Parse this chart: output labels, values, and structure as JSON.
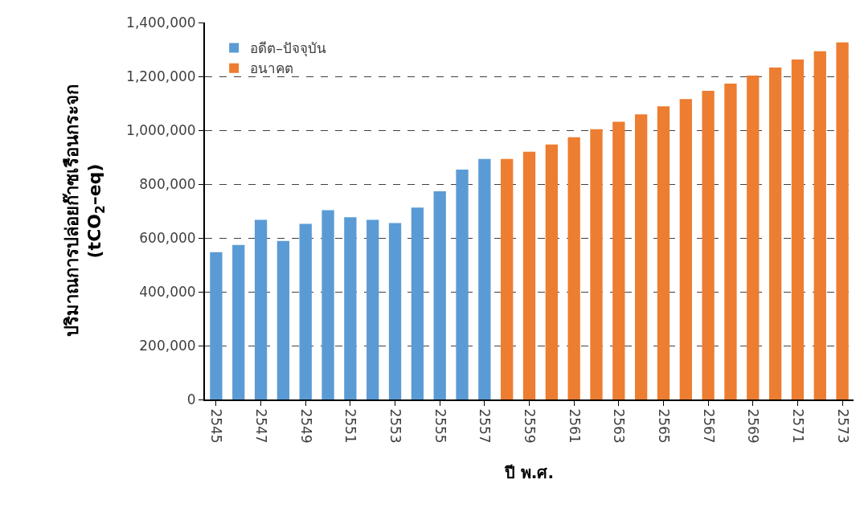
{
  "chart_data": {
    "type": "bar",
    "xlabel": "ปี พ.ศ.",
    "ylabel": "ปริมาณการปล่อยก๊าซเรือนกระจก\n(tCO$_{2}$–eq)",
    "categories": [
      "2545",
      null,
      "2547",
      null,
      "2549",
      null,
      "2551",
      null,
      "2553",
      null,
      "2555",
      null,
      "2557",
      null,
      "2559",
      null,
      "2561",
      null,
      "2563",
      null,
      "2565",
      null,
      "2567",
      null,
      "2569",
      null,
      "2571",
      null,
      "2573"
    ],
    "series": [
      {
        "name": "อดีต–ปัจจุบัน",
        "color": "#5b9bd5",
        "values": [
          547000,
          574000,
          667000,
          589000,
          652000,
          703000,
          677000,
          667000,
          655000,
          713000,
          773000,
          854000,
          893000,
          null,
          null,
          null,
          null,
          null,
          null,
          null,
          null,
          null,
          null,
          null,
          null,
          null,
          null,
          null,
          null
        ]
      },
      {
        "name": "อนาคต",
        "color": "#ed7d31",
        "values": [
          null,
          null,
          null,
          null,
          null,
          null,
          null,
          null,
          null,
          null,
          null,
          null,
          null,
          893000,
          920000,
          947000,
          974000,
          1004000,
          1031000,
          1059000,
          1089000,
          1116000,
          1146000,
          1173000,
          1203000,
          1233000,
          1263000,
          1293000,
          1326000
        ]
      }
    ],
    "ylim": [
      0,
      1400000
    ],
    "yticks": [
      {
        "value": 0,
        "label": "0"
      },
      {
        "value": 200000,
        "label": "200,000"
      },
      {
        "value": 400000,
        "label": "400,000"
      },
      {
        "value": 600000,
        "label": "600,000"
      },
      {
        "value": 800000,
        "label": "800,000"
      },
      {
        "value": 1000000,
        "label": "1,000,000"
      },
      {
        "value": 1200000,
        "label": "1,200,000"
      },
      {
        "value": 1400000,
        "label": "1,400,000"
      }
    ],
    "grid": "y",
    "legend": "top left"
  }
}
